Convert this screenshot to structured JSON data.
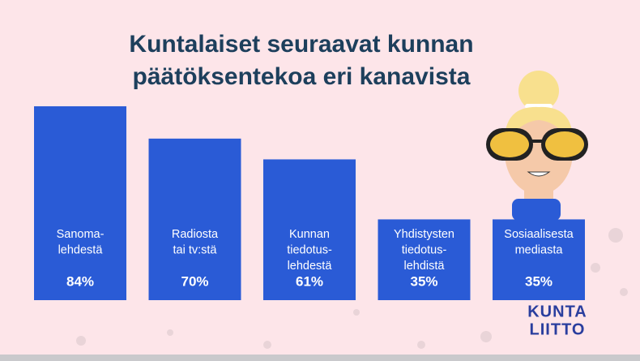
{
  "chart_data": {
    "type": "bar",
    "title": [
      "Kuntalaiset seuraavat kunnan",
      "päätöksentekoa eri kanavista"
    ],
    "categories": [
      [
        "Sanoma-",
        "lehdestä"
      ],
      [
        "Radiosta",
        "tai tv:stä"
      ],
      [
        "Kunnan",
        "tiedotus-",
        "lehdestä"
      ],
      [
        "Yhdistysten",
        "tiedotus-",
        "lehdistä"
      ],
      [
        "Sosiaalisesta",
        "mediasta"
      ]
    ],
    "values": [
      84,
      70,
      61,
      35,
      35
    ],
    "value_labels": [
      "84%",
      "70%",
      "61%",
      "35%",
      "35%"
    ],
    "color": "#2a5bd6"
  },
  "logo": [
    "KUNTA",
    "LIITTO"
  ]
}
